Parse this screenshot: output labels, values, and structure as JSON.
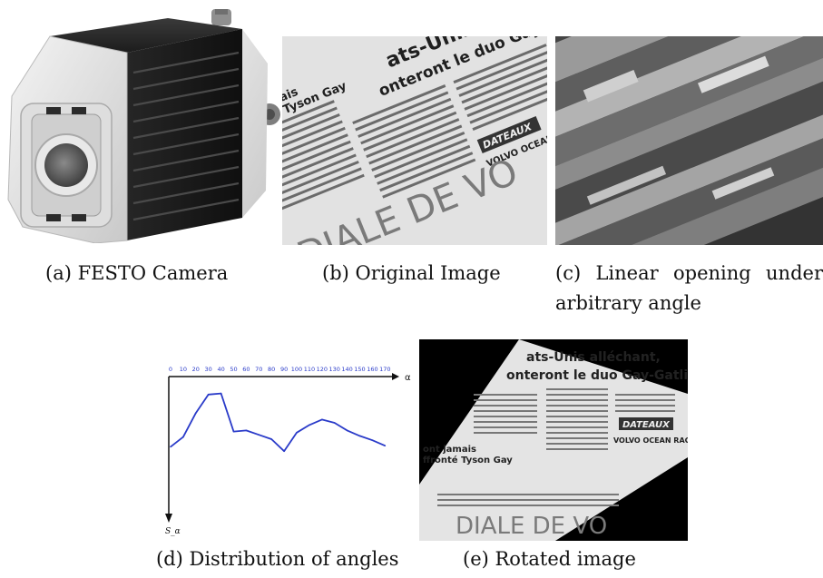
{
  "figure": {
    "captions": {
      "a": "(a)  FESTO Camera",
      "b": "(b)  Original Image",
      "c": "(c)  Linear  opening  under arbitrary angle",
      "d": "(d)  Distribution of angles",
      "e": "(e)  Rotated image"
    },
    "newspaper": {
      "headline_1": "ats-Unis alléchant,",
      "headline_2": "onteront le duo Gay-Gatlin.",
      "sub_1": "ont jamais",
      "sub_2": "ffronté Tyson Gay",
      "section": "DIALE DE VO",
      "section_rotated": "DIALE DE VO",
      "badge": "DATEAUX",
      "item": "VOLVO OCEAN RACE"
    }
  },
  "chart_data": {
    "type": "line",
    "xlabel": "α",
    "ylabel": "S_α",
    "categories": [
      "0",
      "10",
      "20",
      "30",
      "40",
      "50",
      "60",
      "70",
      "80",
      "90",
      "100",
      "110",
      "120",
      "130",
      "140",
      "150",
      "160",
      "170"
    ],
    "series": [
      {
        "values": [
          0.38,
          0.47,
          0.69,
          0.86,
          0.87,
          0.52,
          0.53,
          0.49,
          0.45,
          0.34,
          0.51,
          0.58,
          0.63,
          0.6,
          0.53,
          0.48,
          0.44,
          0.39
        ]
      }
    ],
    "ylim": [
      0,
      1
    ],
    "line_color": "#2a3bc9",
    "tick_color": "#2a3bc9"
  }
}
